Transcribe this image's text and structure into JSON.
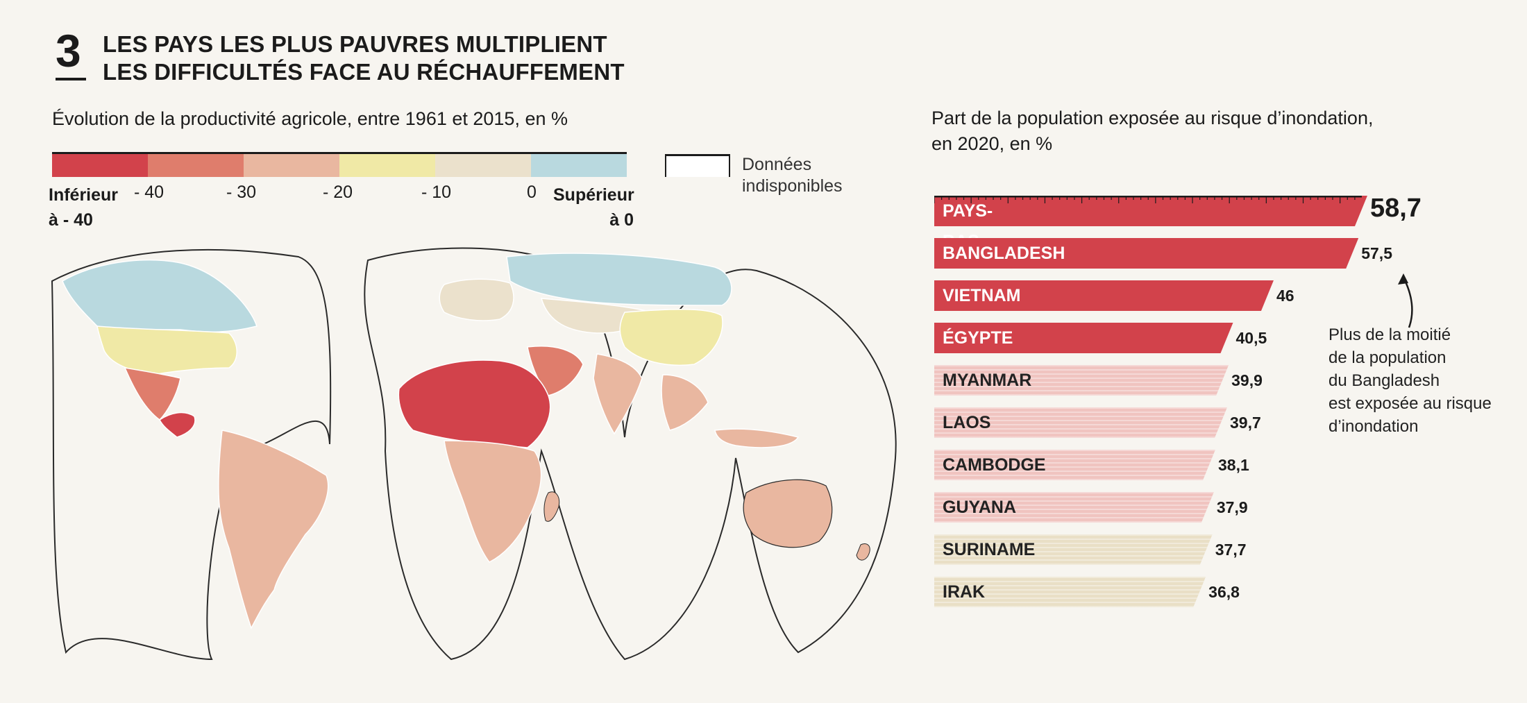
{
  "header": {
    "number": "3",
    "title_line1": "LES PAYS LES PLUS PAUVRES MULTIPLIENT",
    "title_line2": "LES DIFFICULTÉS FACE AU RÉCHAUFFEMENT"
  },
  "map": {
    "subtitle": "Évolution de la productivité agricole, entre 1961 et 2015, en %",
    "legend": {
      "colors": [
        "#d2424b",
        "#df7d6c",
        "#e9b7a0",
        "#f0e9a6",
        "#ebe1cc",
        "#b9d9df"
      ],
      "ticks": [
        "- 40",
        "- 30",
        "- 20",
        "- 10",
        "0"
      ],
      "low_label_line1": "Inférieur",
      "low_label_line2": "à - 40",
      "high_label_line1": "Supérieur",
      "high_label_line2": "à 0",
      "na_label_line1": "Données",
      "na_label_line2": "indisponibles",
      "na_color": "#ffffff"
    }
  },
  "chart_data": {
    "type": "bar",
    "title_line1": "Part de la population exposée au risque d’inondation,",
    "title_line2": "en 2020, en %",
    "categories": [
      "PAYS-BAS",
      "BANGLADESH",
      "VIETNAM",
      "ÉGYPTE",
      "MYANMAR",
      "LAOS",
      "CAMBODGE",
      "GUYANA",
      "SURINAME",
      "IRAK"
    ],
    "values": [
      58.7,
      57.5,
      46,
      40.5,
      39.9,
      39.7,
      38.1,
      37.9,
      37.7,
      36.8
    ],
    "value_labels": [
      "58,7",
      "57,5",
      "46",
      "40,5",
      "39,9",
      "39,7",
      "38,1",
      "37,9",
      "37,7",
      "36,8"
    ],
    "bar_colors": [
      "#d2424b",
      "#d2424b",
      "#d2424b",
      "#d2424b",
      "#f0c4c0",
      "#f0c4c0",
      "#f0c4c0",
      "#f0c4c0",
      "#e9dfc6",
      "#e9dfc6"
    ],
    "label_colors": [
      "#ffffff",
      "#ffffff",
      "#ffffff",
      "#ffffff",
      "#222222",
      "#222222",
      "#222222",
      "#222222",
      "#222222",
      "#222222"
    ],
    "annotation": [
      "Plus de la moitié",
      "de la population",
      "du Bangladesh",
      "est exposée au risque",
      "d’inondation"
    ]
  },
  "colors": {
    "background": "#f7f5f0",
    "accent": "#d2424b"
  }
}
